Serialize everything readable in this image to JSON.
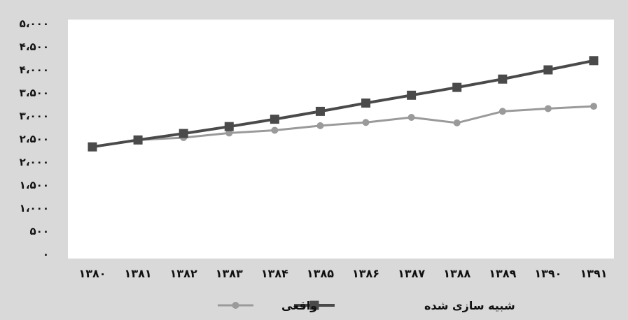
{
  "chart_data": {
    "type": "line",
    "categories": [
      "۱۳۸۰",
      "۱۳۸۱",
      "۱۳۸۲",
      "۱۳۸۳",
      "۱۳۸۴",
      "۱۳۸۵",
      "۱۳۸۶",
      "۱۳۸۷",
      "۱۳۸۸",
      "۱۳۸۹",
      "۱۳۹۰",
      "۱۳۹۱"
    ],
    "y_tick_labels": [
      "۰",
      "۵۰۰",
      "۱،۰۰۰",
      "۱،۵۰۰",
      "۲،۰۰۰",
      "۲،۵۰۰",
      "۳،۰۰۰",
      "۳،۵۰۰",
      "۴،۰۰۰",
      "۴،۵۰۰",
      "۵،۰۰۰"
    ],
    "y_ticks": [
      0,
      500,
      1000,
      1500,
      2000,
      2500,
      3000,
      3500,
      4000,
      4500,
      5000
    ],
    "ylim": [
      0,
      5000
    ],
    "grid": false,
    "legend_position": "bottom",
    "series": [
      {
        "name": "واقعی",
        "marker": "circle",
        "color": "#9a9a9a",
        "values": [
          2330,
          2480,
          2530,
          2630,
          2690,
          2790,
          2860,
          2970,
          2850,
          3100,
          3160,
          3210
        ]
      },
      {
        "name": "شبیه سازی شده",
        "marker": "square",
        "color": "#4a4a4a",
        "values": [
          2330,
          2480,
          2620,
          2770,
          2930,
          3100,
          3280,
          3450,
          3620,
          3800,
          4000,
          4200
        ]
      }
    ]
  }
}
